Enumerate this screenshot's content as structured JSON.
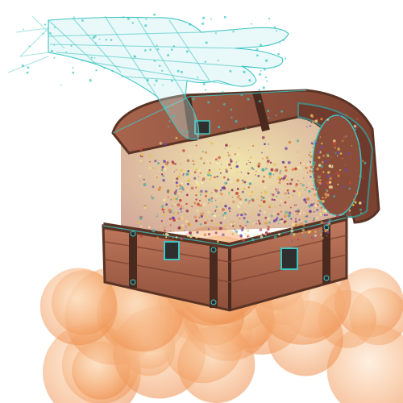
{
  "scene": {
    "subject": "",
    "palette": {
      "background": "#ffffff",
      "wood_light": "#b8745a",
      "wood_mid": "#9c5b45",
      "wood_dark": "#6e3a2c",
      "trim": "#5a3324",
      "wireframe": "#3ec6c4",
      "cloud_light": "#fbd9b8",
      "cloud_mid": "#f6b37e",
      "cloud_dark": "#ee8f4e",
      "sparkle_gold": "#e2c24f",
      "sparkle_red": "#c8483b",
      "sparkle_purple": "#6d4aa8",
      "sparkle_teal": "#49a9a2"
    },
    "icons": [
      "wireframe-hand-icon",
      "treasure-chest-icon",
      "cloud-icon",
      "sparkle-particles-icon"
    ]
  }
}
